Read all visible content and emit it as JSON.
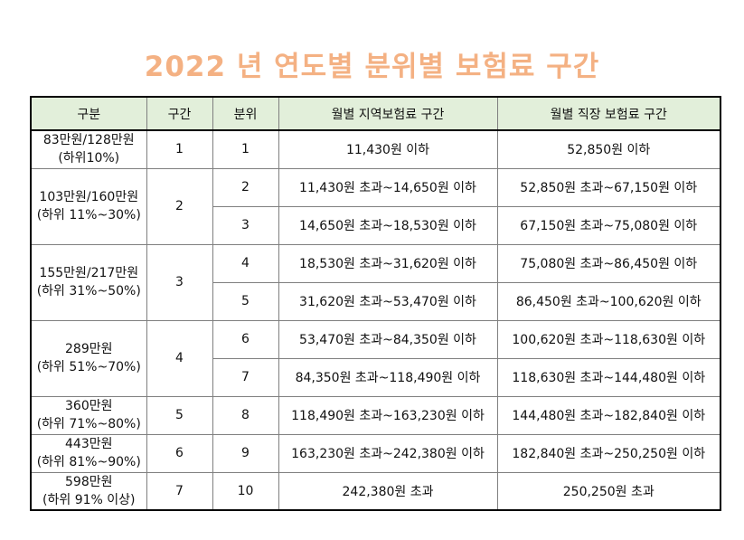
{
  "title": "2022 년 연도별 분위별 보험료 구간",
  "headers": [
    "구분",
    "구간",
    "분위",
    "월별 지역보험료 구간",
    "월별 직장 보험료 구간"
  ],
  "groups": [
    {
      "label1": "83만원/128만원",
      "label2": "(하위10%)",
      "segment": "1",
      "rows": [
        {
          "decile": "1",
          "regional": "11,430원 이하",
          "workplace": "52,850원 이하"
        }
      ]
    },
    {
      "label1": "103만원/160만원",
      "label2": "(하위 11%~30%)",
      "segment": "2",
      "rows": [
        {
          "decile": "2",
          "regional": "11,430원 초과~14,650원 이하",
          "workplace": "52,850원 초과~67,150원 이하"
        },
        {
          "decile": "3",
          "regional": "14,650원 초과~18,530원 이하",
          "workplace": "67,150원 초과~75,080원 이하"
        }
      ]
    },
    {
      "label1": "155만원/217만원",
      "label2": "(하위 31%~50%)",
      "segment": "3",
      "rows": [
        {
          "decile": "4",
          "regional": "18,530원 초과~31,620원 이하",
          "workplace": "75,080원 초과~86,450원 이하"
        },
        {
          "decile": "5",
          "regional": "31,620원 초과~53,470원 이하",
          "workplace": "86,450원 초과~100,620원 이하"
        }
      ]
    },
    {
      "label1": "289만원",
      "label2": "(하위 51%~70%)",
      "segment": "4",
      "rows": [
        {
          "decile": "6",
          "regional": "53,470원 초과~84,350원 이하",
          "workplace": "100,620원 초과~118,630원 이하"
        },
        {
          "decile": "7",
          "regional": "84,350원 초과~118,490원 이하",
          "workplace": "118,630원 초과~144,480원 이하"
        }
      ]
    },
    {
      "label1": "360만원",
      "label2": "(하위 71%~80%)",
      "segment": "5",
      "rows": [
        {
          "decile": "8",
          "regional": "118,490원 초과~163,230원 이하",
          "workplace": "144,480원 초과~182,840원 이하"
        }
      ]
    },
    {
      "label1": "443만원",
      "label2": "(하위 81%~90%)",
      "segment": "6",
      "rows": [
        {
          "decile": "9",
          "regional": "163,230원 초과~242,380원 이하",
          "workplace": "182,840원 초과~250,250원 이하"
        }
      ]
    },
    {
      "label1": "598만원",
      "label2": "(하위 91% 이상)",
      "segment": "7",
      "rows": [
        {
          "decile": "10",
          "regional": "242,380원 초과",
          "workplace": "250,250원 초과"
        }
      ]
    }
  ]
}
